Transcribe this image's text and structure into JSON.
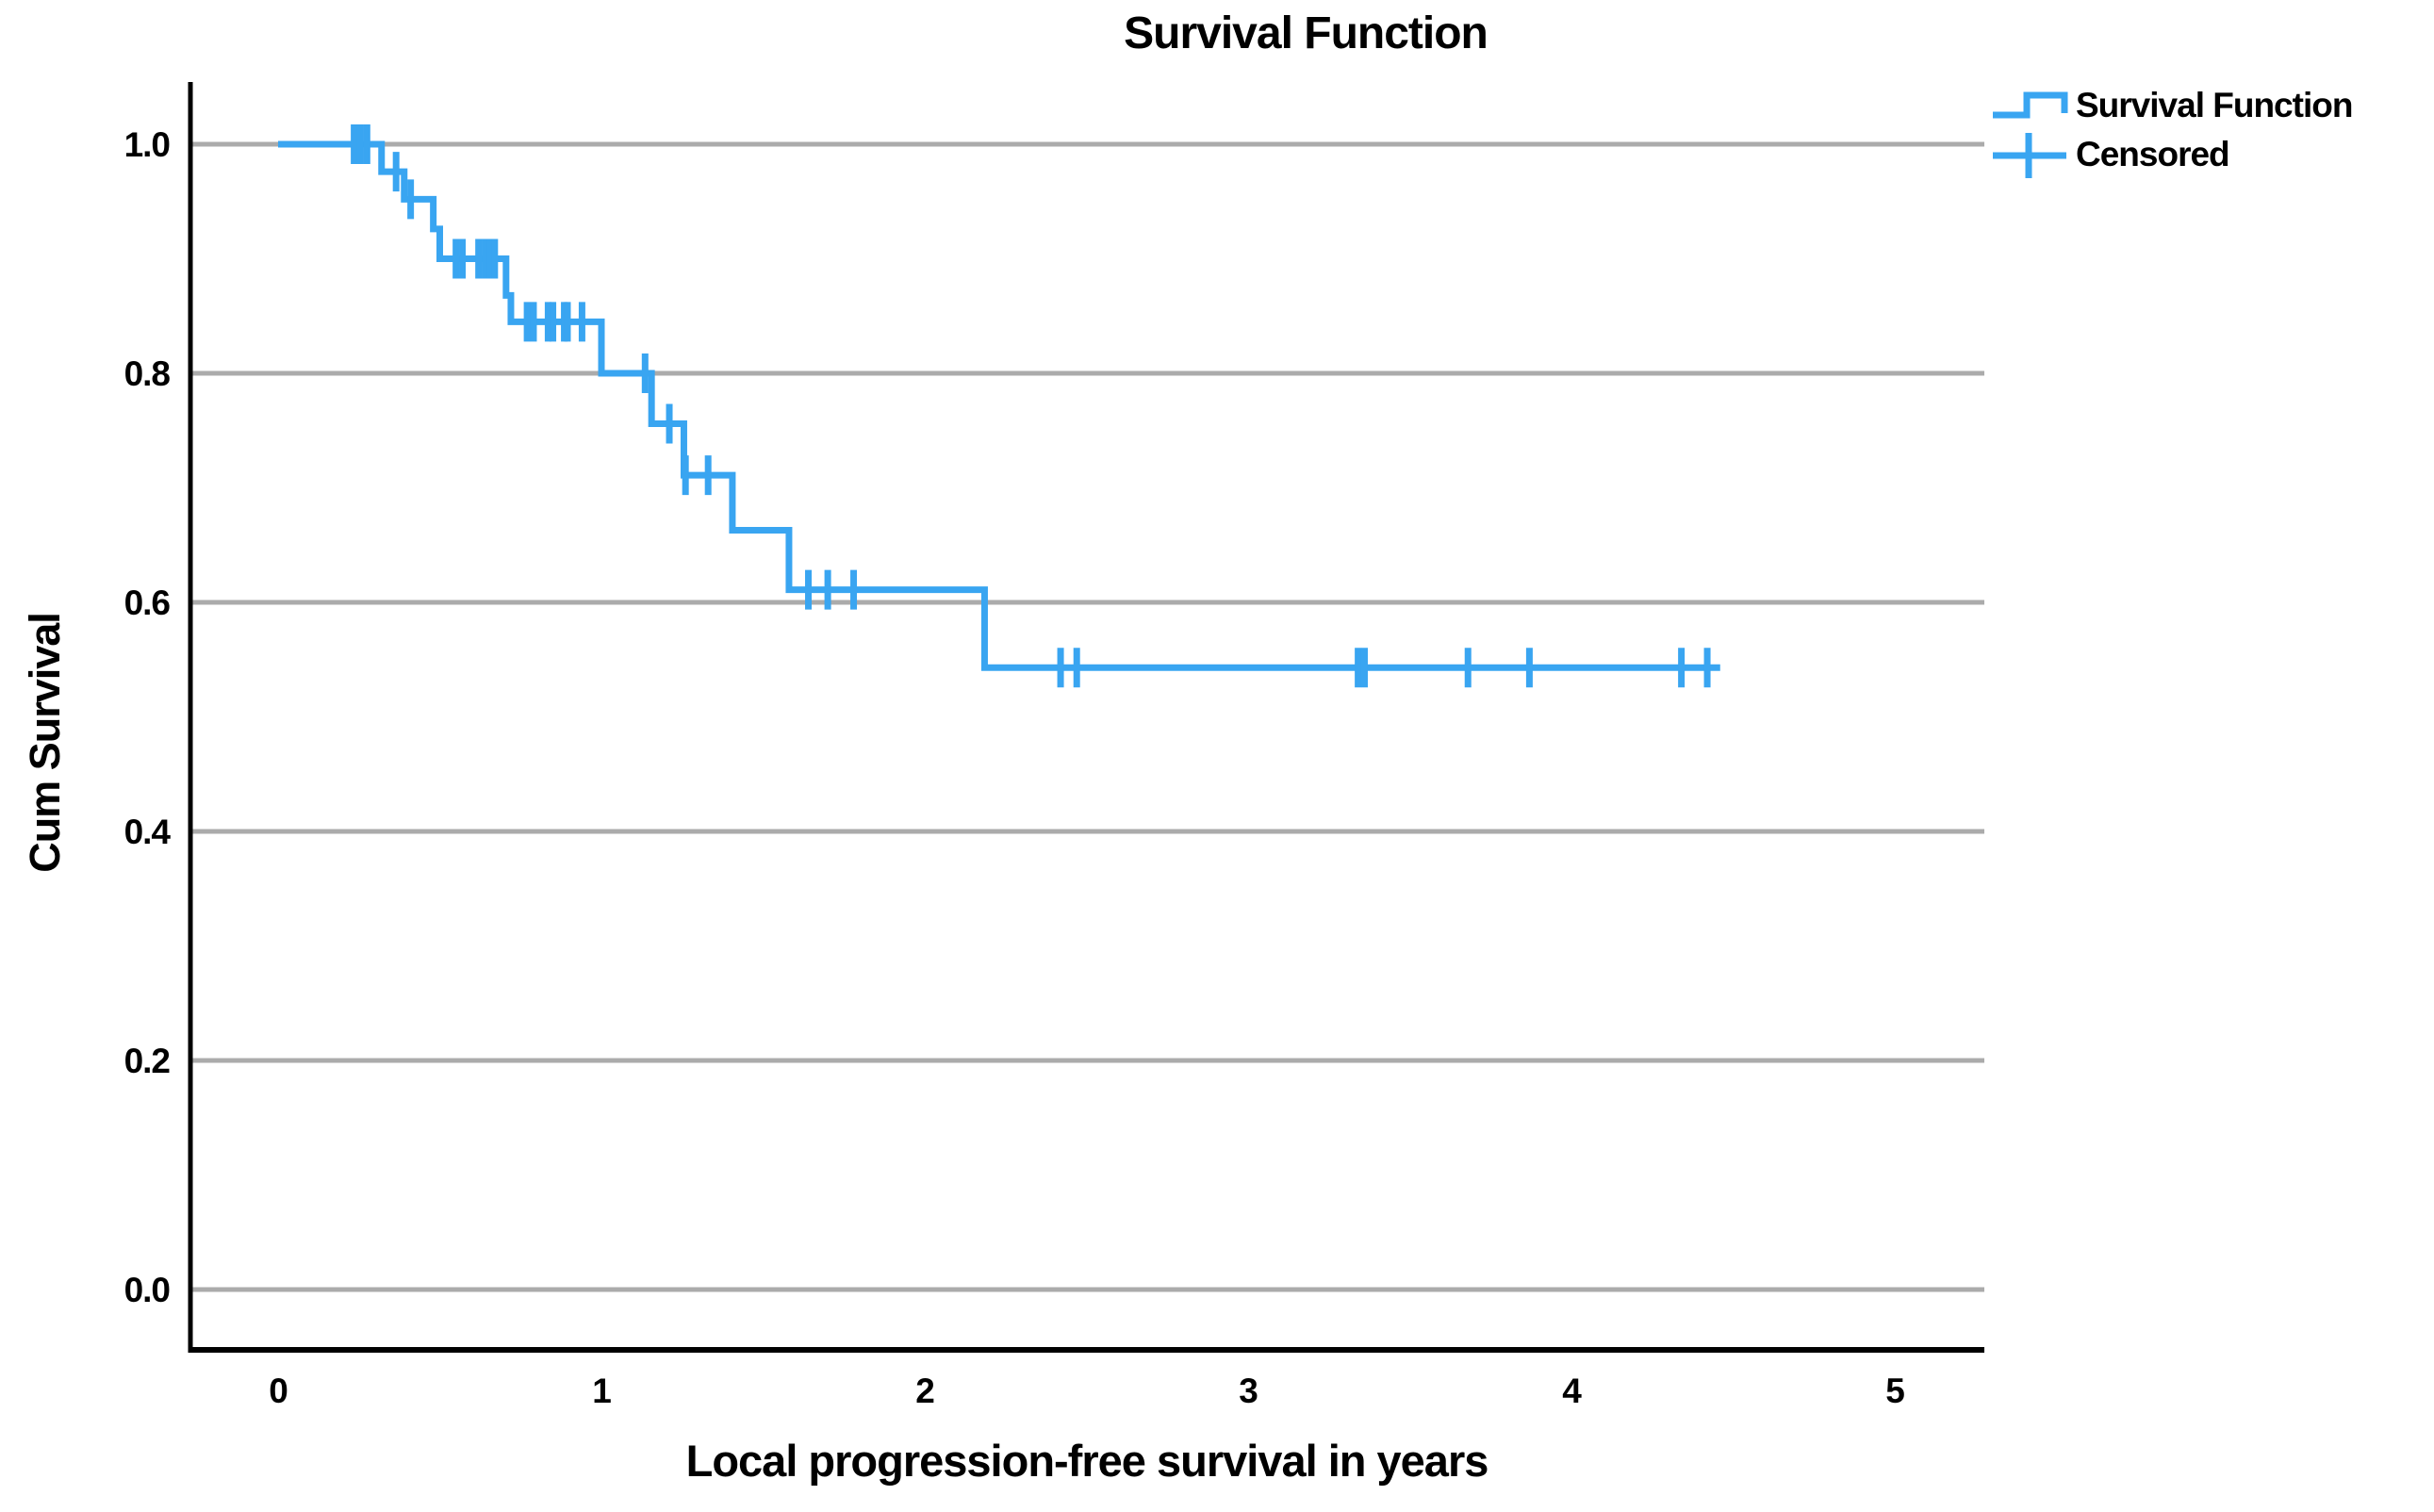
{
  "title": "Survival Function",
  "legend": {
    "items": [
      {
        "label": "Survival Function",
        "symbol": "step-line"
      },
      {
        "label": "Censored",
        "symbol": "plus"
      }
    ]
  },
  "colors": {
    "curve": "#39A5F1",
    "grid": "#ABABAB",
    "axis": "#000000",
    "text": "#000000"
  },
  "chart_data": {
    "type": "line",
    "subtype": "kaplan-meier-step",
    "title": "Survival Function",
    "xlabel": "Local progression-free survival in years",
    "ylabel": "Cum Survival",
    "xlim": [
      -0.28,
      5.28
    ],
    "ylim": [
      -0.05,
      1.05
    ],
    "xticks": [
      0,
      1,
      2,
      3,
      4,
      5
    ],
    "xtick_labels": [
      "0",
      "1",
      "2",
      "3",
      "4",
      "5"
    ],
    "yticks": [
      1.0,
      0.8,
      0.6,
      0.4,
      0.2,
      0.0
    ],
    "ytick_labels": [
      "1.0",
      "0.8",
      "0.6",
      "0.4",
      "0.2",
      "0.0"
    ],
    "grid": "horizontal",
    "legend_position": "top-right",
    "series": [
      {
        "name": "Survival Function",
        "step_points": [
          [
            0.0,
            1.0
          ],
          [
            0.32,
            0.976
          ],
          [
            0.39,
            0.952
          ],
          [
            0.48,
            0.926
          ],
          [
            0.5,
            0.9
          ],
          [
            0.705,
            0.868
          ],
          [
            0.72,
            0.845
          ],
          [
            1.0,
            0.8
          ],
          [
            1.155,
            0.756
          ],
          [
            1.255,
            0.711
          ],
          [
            1.405,
            0.663
          ],
          [
            1.58,
            0.611
          ],
          [
            2.185,
            0.543
          ]
        ],
        "end_time": 4.46
      }
    ],
    "censored_points": [
      [
        0.235,
        1.0
      ],
      [
        0.255,
        1.0
      ],
      [
        0.275,
        1.0
      ],
      [
        0.365,
        0.976
      ],
      [
        0.41,
        0.952
      ],
      [
        0.55,
        0.9
      ],
      [
        0.57,
        0.9
      ],
      [
        0.62,
        0.9
      ],
      [
        0.64,
        0.9
      ],
      [
        0.655,
        0.9
      ],
      [
        0.67,
        0.9
      ],
      [
        0.77,
        0.845
      ],
      [
        0.79,
        0.845
      ],
      [
        0.835,
        0.845
      ],
      [
        0.85,
        0.845
      ],
      [
        0.885,
        0.845
      ],
      [
        0.895,
        0.845
      ],
      [
        0.94,
        0.845
      ],
      [
        1.135,
        0.8
      ],
      [
        1.21,
        0.756
      ],
      [
        1.26,
        0.711
      ],
      [
        1.33,
        0.711
      ],
      [
        1.64,
        0.611
      ],
      [
        1.7,
        0.611
      ],
      [
        1.78,
        0.611
      ],
      [
        2.42,
        0.543
      ],
      [
        2.47,
        0.543
      ],
      [
        3.34,
        0.543
      ],
      [
        3.36,
        0.543
      ],
      [
        3.68,
        0.543
      ],
      [
        3.87,
        0.543
      ],
      [
        4.34,
        0.543
      ],
      [
        4.42,
        0.543
      ]
    ]
  }
}
